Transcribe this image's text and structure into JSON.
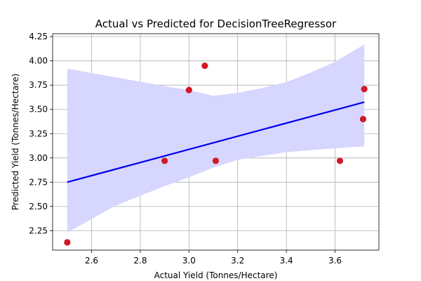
{
  "chart_data": {
    "type": "scatter",
    "title": "Actual vs Predicted for DecisionTreeRegressor",
    "xlabel": "Actual Yield (Tonnes/Hectare)",
    "ylabel": "Predicted Yield (Tonnes/Hectare)",
    "xlim": [
      2.44,
      3.78
    ],
    "ylim": [
      2.05,
      4.28
    ],
    "grid": true,
    "x_ticks": [
      2.6,
      2.8,
      3.0,
      3.2,
      3.4,
      3.6
    ],
    "x_tick_labels": [
      "2.6",
      "2.8",
      "3.0",
      "3.2",
      "3.4",
      "3.6"
    ],
    "y_ticks": [
      2.25,
      2.5,
      2.75,
      3.0,
      3.25,
      3.5,
      3.75,
      4.0,
      4.25
    ],
    "y_tick_labels": [
      "2.25",
      "2.50",
      "2.75",
      "3.00",
      "3.25",
      "3.50",
      "3.75",
      "4.00",
      "4.25"
    ],
    "points": [
      {
        "x": 2.5,
        "y": 2.13
      },
      {
        "x": 2.9,
        "y": 2.97
      },
      {
        "x": 3.0,
        "y": 3.7
      },
      {
        "x": 3.065,
        "y": 3.95
      },
      {
        "x": 3.11,
        "y": 2.97
      },
      {
        "x": 3.62,
        "y": 2.97
      },
      {
        "x": 3.715,
        "y": 3.4
      },
      {
        "x": 3.72,
        "y": 3.71
      }
    ],
    "regression_line": {
      "x": [
        2.5,
        3.72
      ],
      "y": [
        2.75,
        3.575
      ]
    },
    "confidence_band": {
      "x": [
        2.5,
        2.7,
        2.9,
        3.0,
        3.1,
        3.2,
        3.3,
        3.4,
        3.5,
        3.6,
        3.72
      ],
      "upper": [
        3.92,
        3.83,
        3.74,
        3.7,
        3.64,
        3.67,
        3.72,
        3.78,
        3.88,
        3.99,
        4.17
      ],
      "lower": [
        2.23,
        2.51,
        2.71,
        2.8,
        2.9,
        2.98,
        3.02,
        3.06,
        3.08,
        3.1,
        3.12
      ]
    },
    "colors": {
      "points": "#d01828",
      "line": "#0000ee",
      "band": "#d6d6ff",
      "grid": "#b0b0b0"
    }
  }
}
